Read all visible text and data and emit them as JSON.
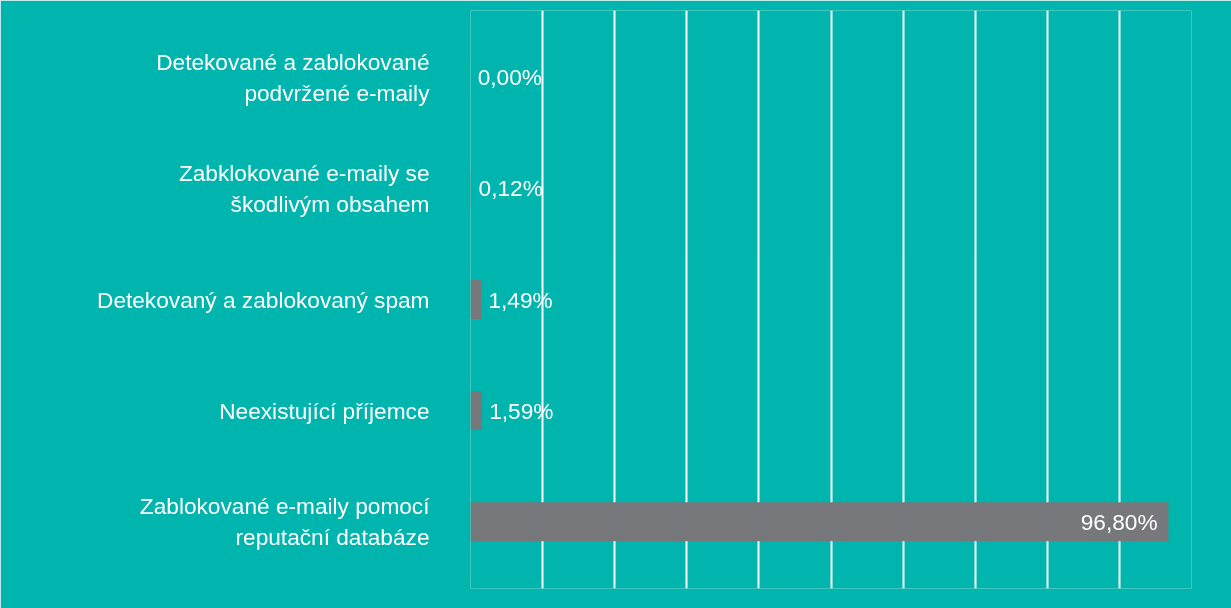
{
  "chart_data": {
    "type": "bar",
    "orientation": "horizontal",
    "categories": [
      "Detekované a zablokované podvržené e-maily",
      "Zabklokované e-maily se škodlivým obsahem",
      "Detekovaný a zablokovaný spam",
      "Neexistující příjemce",
      "Zablokované e-maily pomocí reputační databáze"
    ],
    "values": [
      0.0,
      0.12,
      1.49,
      1.59,
      96.8
    ],
    "color": "#77787b",
    "value_labels": [
      "0,00%",
      "0,12%",
      "1,49%",
      "1,59%",
      "96,80%"
    ],
    "xlim": [
      0,
      100
    ],
    "xticks": [
      {
        "value": 0,
        "label": null
      },
      {
        "value": 10,
        "label": null
      },
      {
        "value": 20,
        "label": null
      },
      {
        "value": 30,
        "label": null
      },
      {
        "value": 40,
        "label": null
      },
      {
        "value": 50,
        "label": null
      },
      {
        "value": 60,
        "label": null
      },
      {
        "value": 70,
        "label": null
      },
      {
        "value": 80,
        "label": null
      },
      {
        "value": 90,
        "label": null
      },
      {
        "value": 100,
        "label": null
      }
    ],
    "grid": "x",
    "tick_labels": "y"
  }
}
